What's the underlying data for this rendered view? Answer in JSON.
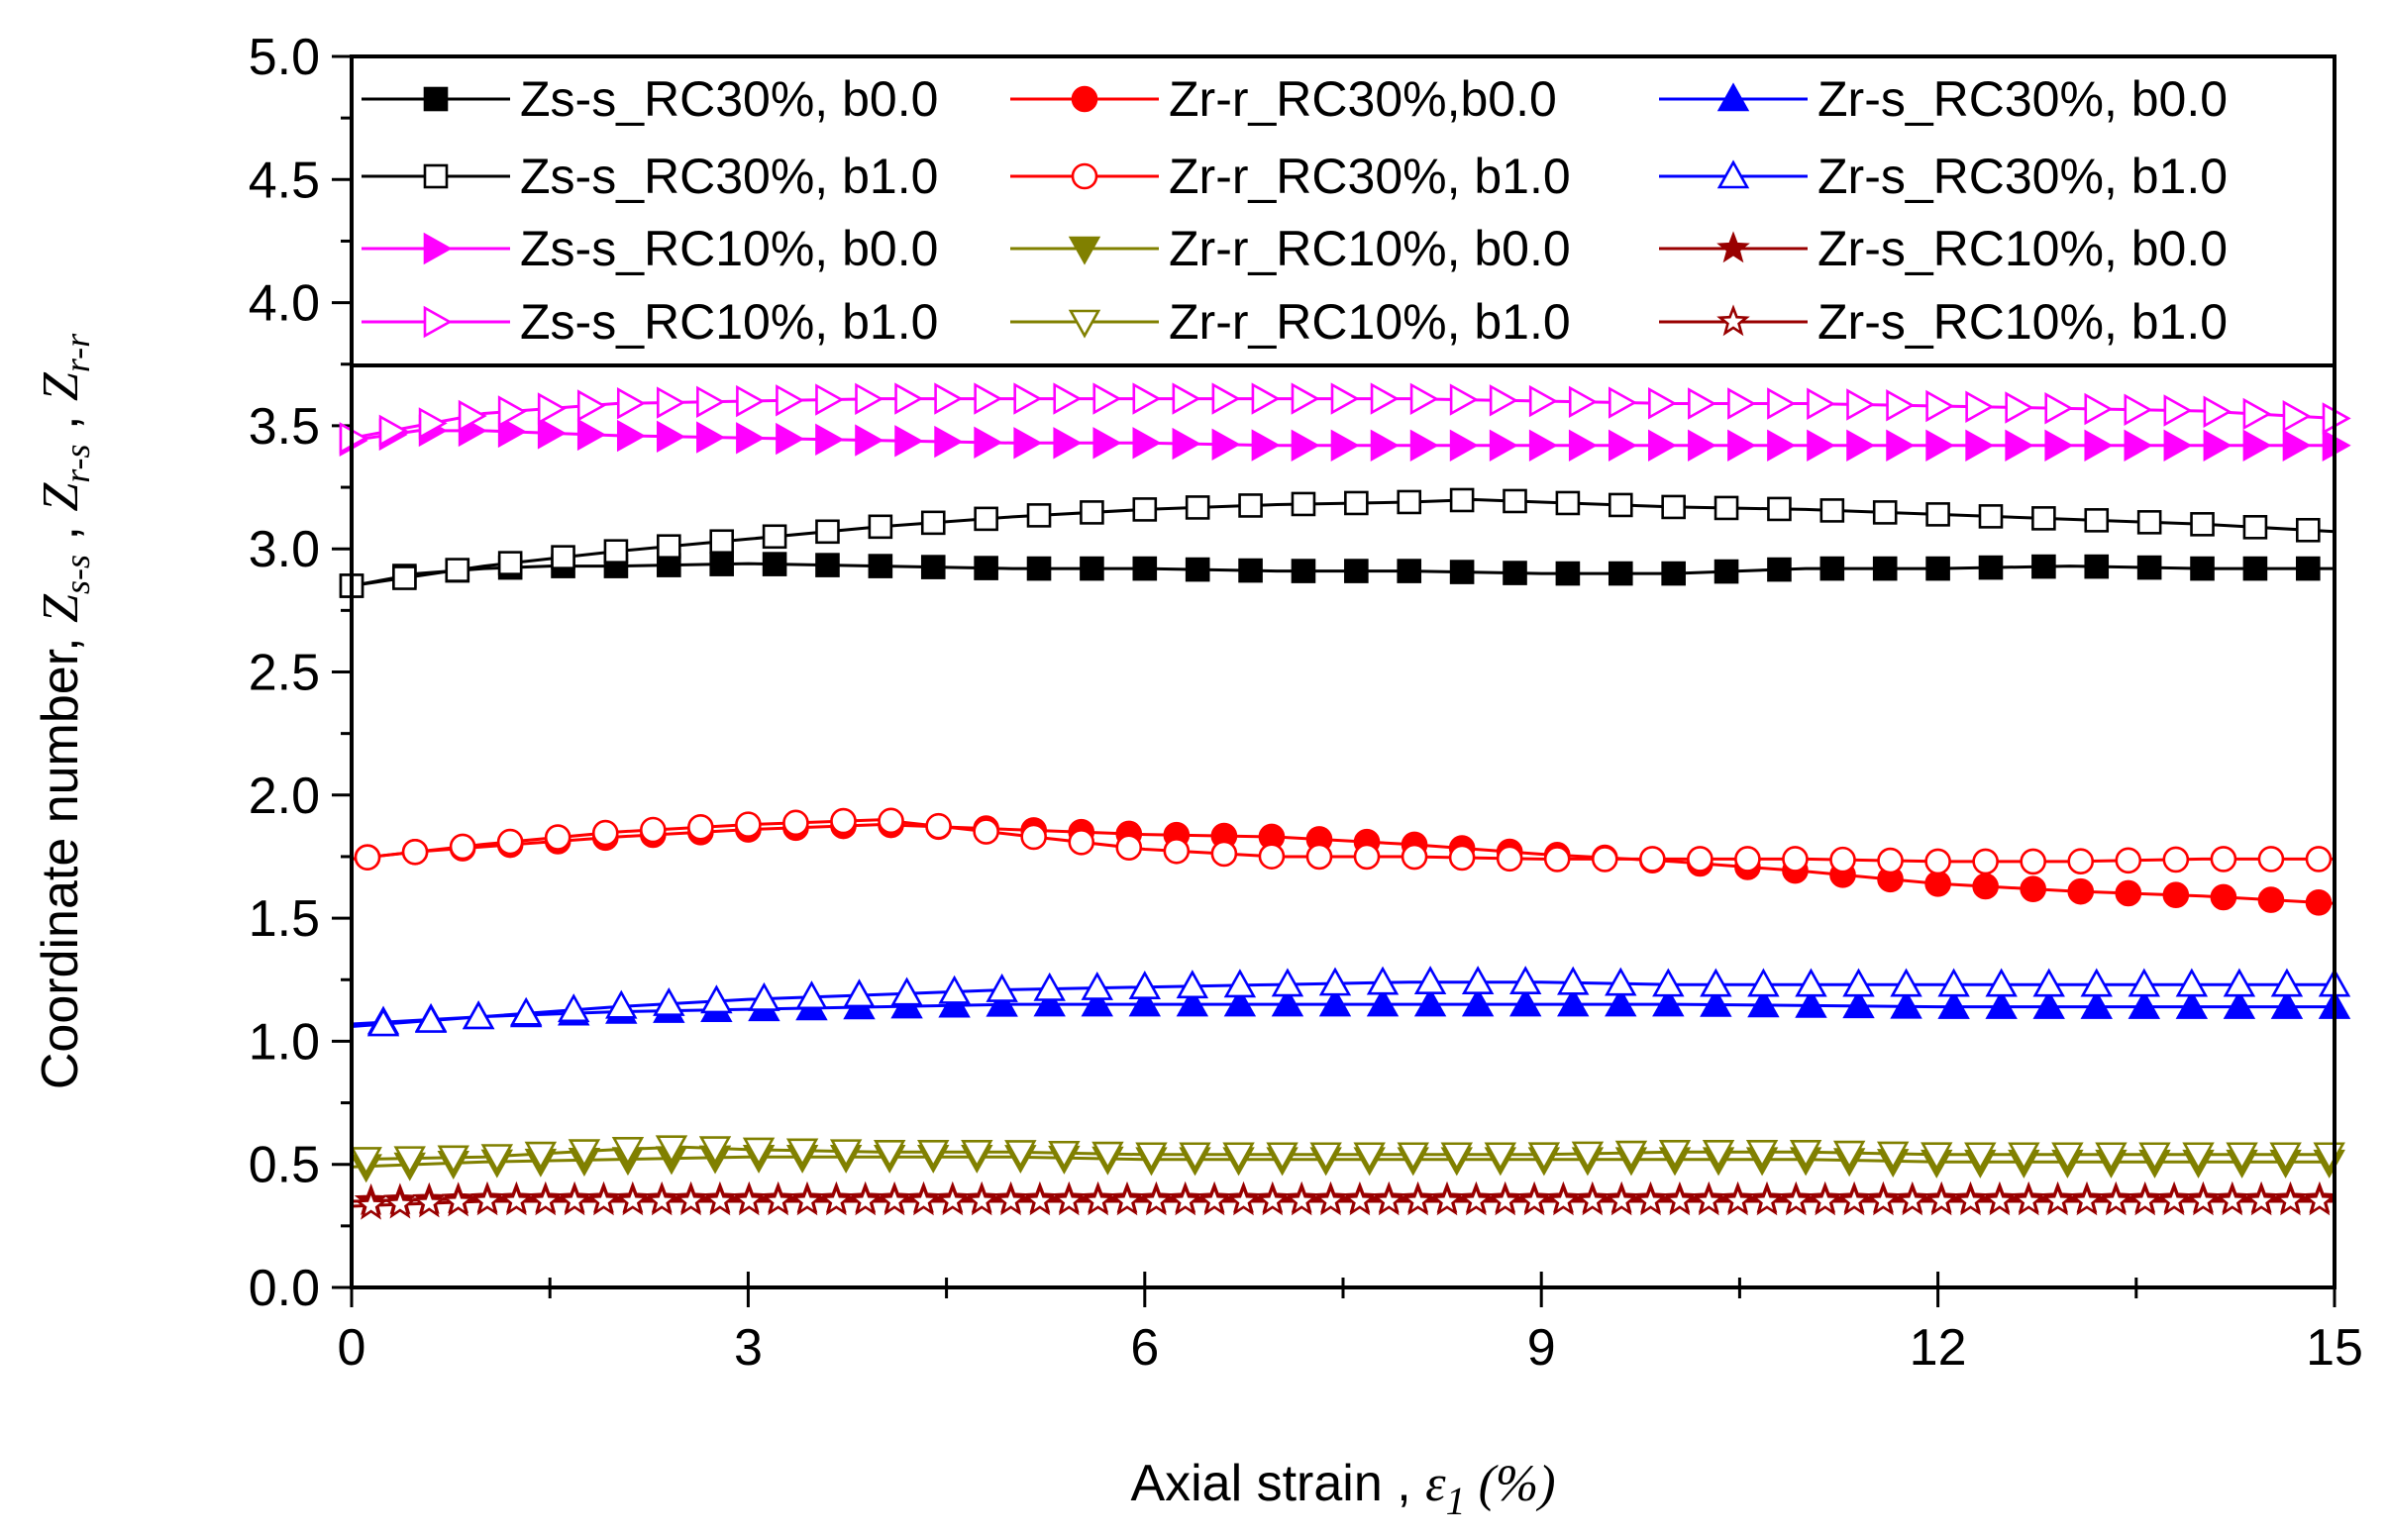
{
  "chart_data": {
    "type": "line",
    "title": "",
    "xlabel": "Axial  strain , ",
    "xlabel_symbol": "ε",
    "xlabel_sub": "1",
    "xlabel_unit": " (%)",
    "ylabel": "Coordinate number, ",
    "ylabel_parts": [
      {
        "sym": "Z",
        "sub": "s-s",
        "sep": " , "
      },
      {
        "sym": "Z",
        "sub": "r-s",
        "sep": " , "
      },
      {
        "sym": "Z",
        "sub": "r-r",
        "sep": ""
      }
    ],
    "xlim": [
      0,
      15
    ],
    "ylim": [
      0.0,
      5.0
    ],
    "x_ticks": [
      "0",
      "3",
      "6",
      "9",
      "12",
      "15"
    ],
    "y_ticks": [
      "0.0",
      "0.5",
      "1.0",
      "1.5",
      "2.0",
      "2.5",
      "3.0",
      "3.5",
      "4.0",
      "4.5",
      "5.0"
    ],
    "legend_position": "top (inside axes, 3 columns x 4 rows)",
    "series": [
      {
        "name": "Zs-s_RC30%, b0.0",
        "color": "#000000",
        "marker": "square",
        "filled": true,
        "x": [
          0,
          0.5,
          1,
          1.5,
          2,
          3,
          4,
          5,
          6,
          7,
          8,
          9,
          10,
          11,
          12,
          13,
          14,
          15
        ],
        "y": [
          2.85,
          2.9,
          2.92,
          2.93,
          2.93,
          2.94,
          2.93,
          2.92,
          2.92,
          2.91,
          2.91,
          2.9,
          2.9,
          2.92,
          2.92,
          2.93,
          2.92,
          2.92
        ]
      },
      {
        "name": "Zr-r_RC30%,b0.0",
        "color": "#ff0000",
        "marker": "circle",
        "filled": true,
        "x": [
          0,
          0.5,
          1,
          2,
          3,
          4,
          5,
          6,
          7,
          8,
          9,
          10,
          11,
          12,
          13,
          14,
          15
        ],
        "y": [
          1.74,
          1.77,
          1.79,
          1.83,
          1.86,
          1.88,
          1.86,
          1.84,
          1.83,
          1.8,
          1.76,
          1.73,
          1.69,
          1.64,
          1.61,
          1.59,
          1.56
        ]
      },
      {
        "name": "Zr-s_RC30%, b0.0",
        "color": "#0000ff",
        "marker": "triangle-up",
        "filled": true,
        "x": [
          0,
          1,
          2,
          3,
          4,
          5,
          6,
          8,
          10,
          12,
          15
        ],
        "y": [
          1.07,
          1.1,
          1.12,
          1.13,
          1.14,
          1.15,
          1.15,
          1.15,
          1.15,
          1.14,
          1.14
        ]
      },
      {
        "name": "Zs-s_RC30%, b1.0",
        "color": "#000000",
        "marker": "square",
        "filled": false,
        "x": [
          0,
          1,
          2,
          3,
          4,
          5,
          6,
          7,
          8,
          8.5,
          9,
          10,
          11,
          12,
          13,
          14,
          15
        ],
        "y": [
          2.85,
          2.93,
          2.99,
          3.04,
          3.09,
          3.13,
          3.16,
          3.18,
          3.19,
          3.2,
          3.19,
          3.17,
          3.16,
          3.14,
          3.12,
          3.1,
          3.07
        ]
      },
      {
        "name": "Zr-r_RC30%, b1.0",
        "color": "#ff0000",
        "marker": "circle",
        "filled": false,
        "x": [
          0,
          1,
          2,
          3,
          4,
          5,
          6,
          7,
          8,
          9,
          10,
          11,
          12,
          13,
          14,
          15
        ],
        "y": [
          1.74,
          1.8,
          1.85,
          1.88,
          1.9,
          1.84,
          1.78,
          1.75,
          1.75,
          1.74,
          1.74,
          1.74,
          1.73,
          1.73,
          1.74,
          1.74
        ]
      },
      {
        "name": "Zr-s_RC30%, b1.0",
        "color": "#0000ff",
        "marker": "triangle-up",
        "filled": false,
        "x": [
          0,
          1,
          2,
          3,
          4,
          5,
          6,
          7,
          8,
          9,
          10,
          11,
          12,
          13,
          14,
          15
        ],
        "y": [
          1.06,
          1.1,
          1.14,
          1.17,
          1.19,
          1.21,
          1.22,
          1.23,
          1.24,
          1.24,
          1.23,
          1.23,
          1.23,
          1.23,
          1.23,
          1.23
        ]
      },
      {
        "name": "Zs-s_RC10%, b0.0",
        "color": "#ff00ff",
        "marker": "triangle-right",
        "filled": true,
        "x": [
          0,
          0.5,
          1,
          2,
          3,
          4,
          5,
          6,
          7,
          8,
          9,
          10,
          11,
          12,
          13,
          14,
          15
        ],
        "y": [
          3.44,
          3.48,
          3.48,
          3.46,
          3.45,
          3.44,
          3.43,
          3.43,
          3.42,
          3.42,
          3.42,
          3.42,
          3.42,
          3.42,
          3.42,
          3.42,
          3.42
        ]
      },
      {
        "name": "Zr-r_RC10%, b0.0",
        "color": "#808000",
        "marker": "triangle-down",
        "filled": true,
        "x": [
          0,
          1,
          2,
          3,
          4,
          5,
          6,
          7,
          8,
          9,
          10,
          11,
          12,
          13,
          14,
          15
        ],
        "y": [
          0.49,
          0.51,
          0.52,
          0.53,
          0.53,
          0.53,
          0.52,
          0.52,
          0.52,
          0.52,
          0.52,
          0.52,
          0.51,
          0.51,
          0.51,
          0.51
        ]
      },
      {
        "name": "Zr-s_RC10%, b0.0",
        "color": "#990000",
        "marker": "star",
        "filled": true,
        "x": [
          0,
          1,
          2,
          3,
          4,
          5,
          6,
          7,
          8,
          9,
          10,
          11,
          12,
          13,
          14,
          15
        ],
        "y": [
          0.35,
          0.36,
          0.36,
          0.36,
          0.36,
          0.36,
          0.36,
          0.36,
          0.36,
          0.36,
          0.36,
          0.36,
          0.36,
          0.36,
          0.36,
          0.36
        ]
      },
      {
        "name": "Zs-s_RC10%, b1.0",
        "color": "#ff00ff",
        "marker": "triangle-right",
        "filled": false,
        "x": [
          0,
          1,
          2,
          3,
          4,
          5,
          6,
          7,
          8,
          9,
          10,
          11,
          12,
          13,
          14,
          15
        ],
        "y": [
          3.45,
          3.55,
          3.59,
          3.6,
          3.61,
          3.61,
          3.61,
          3.61,
          3.61,
          3.6,
          3.59,
          3.59,
          3.58,
          3.57,
          3.56,
          3.53
        ]
      },
      {
        "name": "Zr-r_RC10%, b1.0",
        "color": "#808000",
        "marker": "triangle-down",
        "filled": false,
        "x": [
          0,
          1,
          2,
          2.5,
          3,
          4,
          5,
          6,
          7,
          8,
          9,
          10,
          11,
          12,
          13,
          14,
          15
        ],
        "y": [
          0.52,
          0.53,
          0.56,
          0.57,
          0.56,
          0.55,
          0.55,
          0.54,
          0.54,
          0.54,
          0.54,
          0.55,
          0.55,
          0.54,
          0.54,
          0.54,
          0.54
        ]
      },
      {
        "name": "Zr-s_RC10%, b1.0",
        "color": "#990000",
        "marker": "star",
        "filled": false,
        "x": [
          0,
          1,
          2,
          3,
          4,
          5,
          6,
          7,
          8,
          9,
          10,
          11,
          12,
          13,
          14,
          15
        ],
        "y": [
          0.33,
          0.35,
          0.35,
          0.35,
          0.35,
          0.35,
          0.35,
          0.35,
          0.35,
          0.35,
          0.35,
          0.35,
          0.35,
          0.35,
          0.35,
          0.35
        ]
      }
    ]
  }
}
